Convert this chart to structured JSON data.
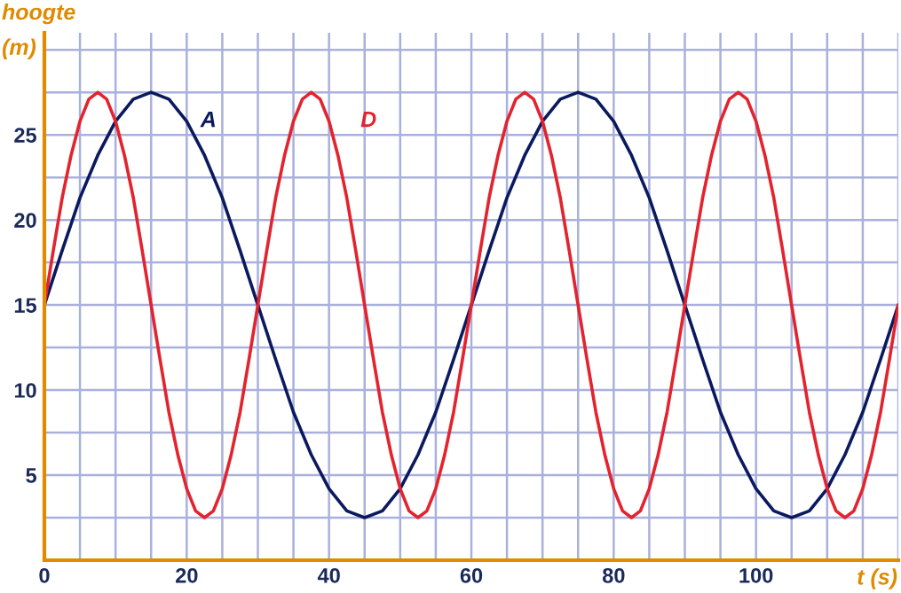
{
  "chart_data": {
    "type": "line",
    "xlabel": "t (s)",
    "ylabel": "hoogte\n(m)",
    "xlim": [
      0,
      120
    ],
    "ylim": [
      0,
      31
    ],
    "xticks": [
      0,
      {
        "value": 5,
        "label": null
      },
      {
        "value": 10,
        "label": null
      },
      {
        "value": 15,
        "label": null
      },
      20,
      {
        "value": 25,
        "label": null
      },
      {
        "value": 30,
        "label": null
      },
      {
        "value": 35,
        "label": null
      },
      40,
      {
        "value": 45,
        "label": null
      },
      {
        "value": 50,
        "label": null
      },
      {
        "value": 55,
        "label": null
      },
      60,
      {
        "value": 65,
        "label": null
      },
      {
        "value": 70,
        "label": null
      },
      {
        "value": 75,
        "label": null
      },
      80,
      {
        "value": 85,
        "label": null
      },
      {
        "value": 90,
        "label": null
      },
      {
        "value": 95,
        "label": null
      },
      100,
      {
        "value": 105,
        "label": null
      },
      {
        "value": 110,
        "label": null
      },
      {
        "value": 115,
        "label": null
      },
      {
        "value": 120,
        "label": null
      }
    ],
    "yticks": [
      {
        "value": 2.5,
        "label": null
      },
      5,
      {
        "value": 7.5,
        "label": null
      },
      10,
      {
        "value": 12.5,
        "label": null
      },
      15,
      {
        "value": 17.5,
        "label": null
      },
      20,
      {
        "value": 22.5,
        "label": null
      },
      25,
      {
        "value": 27.5,
        "label": null
      },
      {
        "value": 30,
        "label": null
      }
    ],
    "grid": true,
    "legend": false,
    "marker": "none",
    "line_style": "solid",
    "series": [
      {
        "name": "A",
        "color": "#0b1a5e",
        "x": [
          0,
          2.5,
          5,
          7.5,
          10,
          12.5,
          15,
          17.5,
          20,
          22.5,
          25,
          27.5,
          30,
          32.5,
          35,
          37.5,
          40,
          42.5,
          45,
          47.5,
          50,
          52.5,
          55,
          57.5,
          60,
          62.5,
          65,
          67.5,
          70,
          72.5,
          75,
          77.5,
          80,
          82.5,
          85,
          87.5,
          90,
          92.5,
          95,
          97.5,
          100,
          102.5,
          105,
          107.5,
          110,
          112.5,
          115,
          117.5,
          120
        ],
        "values": [
          15,
          18.2,
          21.3,
          23.8,
          25.8,
          27.1,
          27.5,
          27.1,
          25.8,
          23.8,
          21.3,
          18.2,
          15,
          11.8,
          8.7,
          6.2,
          4.2,
          2.9,
          2.5,
          2.9,
          4.2,
          6.2,
          8.7,
          11.8,
          15,
          18.2,
          21.3,
          23.8,
          25.8,
          27.1,
          27.5,
          27.1,
          25.8,
          23.8,
          21.3,
          18.2,
          15,
          11.8,
          8.7,
          6.2,
          4.2,
          2.9,
          2.5,
          2.9,
          4.2,
          6.2,
          8.7,
          11.8,
          15
        ]
      },
      {
        "name": "D",
        "color": "#e3232e",
        "x": [
          0,
          1.25,
          2.5,
          3.75,
          5,
          6.25,
          7.5,
          8.75,
          10,
          11.25,
          12.5,
          13.75,
          15,
          16.25,
          17.5,
          18.75,
          20,
          21.25,
          22.5,
          23.75,
          25,
          26.25,
          27.5,
          28.75,
          30,
          31.25,
          32.5,
          33.75,
          35,
          36.25,
          37.5,
          38.75,
          40,
          41.25,
          42.5,
          43.75,
          45,
          46.25,
          47.5,
          48.75,
          50,
          51.25,
          52.5,
          53.75,
          55,
          56.25,
          57.5,
          58.75,
          60,
          61.25,
          62.5,
          63.75,
          65,
          66.25,
          67.5,
          68.75,
          70,
          71.25,
          72.5,
          73.75,
          75,
          76.25,
          77.5,
          78.75,
          80,
          81.25,
          82.5,
          83.75,
          85,
          86.25,
          87.5,
          88.75,
          90,
          91.25,
          92.5,
          93.75,
          95,
          96.25,
          97.5,
          98.75,
          100,
          101.25,
          102.5,
          103.75,
          105,
          106.25,
          107.5,
          108.75,
          110,
          111.25,
          112.5,
          113.75,
          115,
          116.25,
          117.5,
          118.75,
          120
        ],
        "values": [
          15,
          18.2,
          21.3,
          23.8,
          25.8,
          27.1,
          27.5,
          27.1,
          25.8,
          23.8,
          21.3,
          18.2,
          15,
          11.8,
          8.7,
          6.2,
          4.2,
          2.9,
          2.5,
          2.9,
          4.2,
          6.2,
          8.7,
          11.8,
          15,
          18.2,
          21.3,
          23.8,
          25.8,
          27.1,
          27.5,
          27.1,
          25.8,
          23.8,
          21.3,
          18.2,
          15,
          11.8,
          8.7,
          6.2,
          4.2,
          2.9,
          2.5,
          2.9,
          4.2,
          6.2,
          8.7,
          11.8,
          15,
          18.2,
          21.3,
          23.8,
          25.8,
          27.1,
          27.5,
          27.1,
          25.8,
          23.8,
          21.3,
          18.2,
          15,
          11.8,
          8.7,
          6.2,
          4.2,
          2.9,
          2.5,
          2.9,
          4.2,
          6.2,
          8.7,
          11.8,
          15,
          18.2,
          21.3,
          23.8,
          25.8,
          27.1,
          27.5,
          27.1,
          25.8,
          23.8,
          21.3,
          18.2,
          15,
          11.8,
          8.7,
          6.2,
          4.2,
          2.9,
          2.5,
          2.9,
          4.2,
          6.2,
          8.7,
          11.8,
          15
        ]
      }
    ]
  }
}
